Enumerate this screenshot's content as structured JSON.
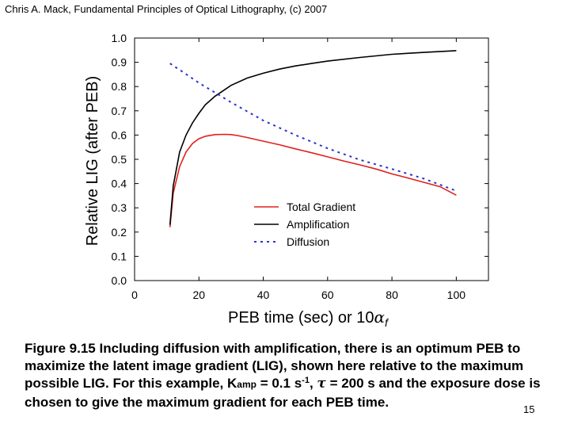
{
  "header": {
    "credit": "Chris A. Mack, Fundamental Principles of Optical Lithography, (c) 2007"
  },
  "chart_data": {
    "type": "line",
    "ylabel": "Relative LIG (after PEB)",
    "xlabel_main": "PEB time (sec) or 10",
    "xlabel_symbol": "α",
    "xlabel_subscript": "f",
    "xlim": [
      0,
      110
    ],
    "ylim": [
      0,
      1.0
    ],
    "x_ticks": [
      0,
      20,
      40,
      60,
      80,
      100
    ],
    "y_ticks": [
      0.0,
      0.1,
      0.2,
      0.3,
      0.4,
      0.5,
      0.6,
      0.7,
      0.8,
      0.9,
      1.0
    ],
    "y_tick_labels": [
      "0.0",
      "0.1",
      "0.2",
      "0.3",
      "0.4",
      "0.5",
      "0.6",
      "0.7",
      "0.8",
      "0.9",
      "1.0"
    ],
    "legend_position": "lower-right",
    "series": [
      {
        "name": "Total Gradient",
        "color": "#e0201c",
        "style": "solid",
        "x": [
          11,
          12,
          14,
          16,
          18,
          20,
          22,
          25,
          28,
          30,
          32,
          35,
          40,
          45,
          50,
          55,
          60,
          65,
          70,
          75,
          80,
          85,
          90,
          95,
          100
        ],
        "y": [
          0.22,
          0.36,
          0.47,
          0.53,
          0.565,
          0.585,
          0.595,
          0.602,
          0.603,
          0.602,
          0.598,
          0.59,
          0.575,
          0.56,
          0.543,
          0.527,
          0.51,
          0.493,
          0.477,
          0.46,
          0.44,
          0.423,
          0.405,
          0.387,
          0.352
        ]
      },
      {
        "name": "Amplification",
        "color": "#000000",
        "style": "solid",
        "x": [
          11,
          12,
          14,
          16,
          18,
          20,
          22,
          25,
          30,
          35,
          40,
          45,
          50,
          55,
          60,
          70,
          80,
          90,
          100
        ],
        "y": [
          0.23,
          0.39,
          0.53,
          0.6,
          0.65,
          0.69,
          0.725,
          0.76,
          0.805,
          0.835,
          0.855,
          0.872,
          0.885,
          0.895,
          0.905,
          0.92,
          0.933,
          0.941,
          0.948
        ]
      },
      {
        "name": "Diffusion",
        "color": "#2b35c8",
        "style": "dotted",
        "x": [
          11,
          15,
          20,
          25,
          30,
          40,
          50,
          60,
          70,
          80,
          90,
          100
        ],
        "y": [
          0.895,
          0.86,
          0.815,
          0.775,
          0.735,
          0.66,
          0.6,
          0.545,
          0.498,
          0.46,
          0.42,
          0.37
        ]
      }
    ]
  },
  "caption": {
    "line1": "Figure 9.15  Including diffusion with amplification, there is an optimum PEB to",
    "line2": "maximize the latent image gradient (LIG), shown here relative to the maximum",
    "line3_pre": "possible LIG.  For this example, K",
    "line3_sub": "amp",
    "line3_mid": " = 0.1 s",
    "line3_sup": "-1",
    "line3_comma": ", ",
    "line3_tau": "τ",
    "line3_post": " = 200 s and the exposure dose is",
    "line4": "chosen to give the maximum gradient for each PEB time."
  },
  "page": {
    "number": "15"
  }
}
